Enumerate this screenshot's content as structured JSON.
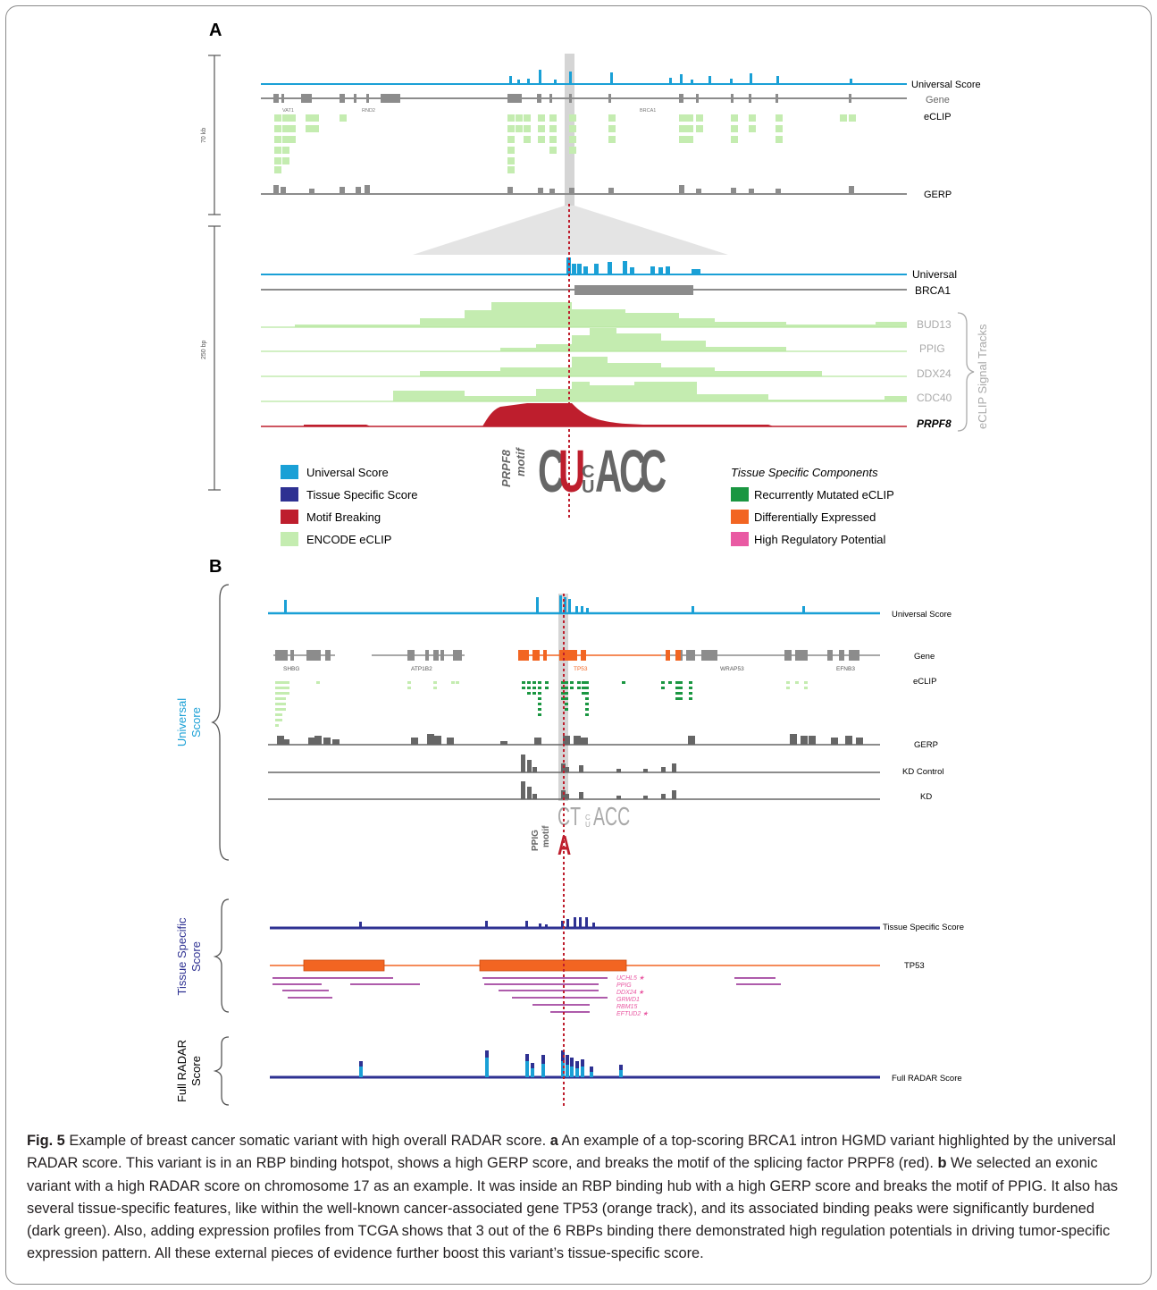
{
  "panelA": {
    "label": "A",
    "scale_top": "70 kb",
    "scale_bottom": "250 bp",
    "tracks_top": [
      "Universal Score",
      "Gene",
      "eCLIP",
      "GERP"
    ],
    "genes_top": [
      "VAT1",
      "RND2",
      "BRCA1"
    ],
    "tracks_zoom": [
      "Universal",
      "BRCA1"
    ],
    "signal_tracks": [
      "BUD13",
      "PPIG",
      "DDX24",
      "CDC40",
      "PRPF8"
    ],
    "signal_group_label": "eCLIP Signal Tracks",
    "motif_label_1": "PRPF8",
    "motif_label_2": "motif",
    "motif_letters": [
      "C",
      "U",
      "C",
      "U",
      "A",
      "C",
      "C"
    ],
    "legend_left": [
      {
        "label": "Universal Score",
        "color": "#1aa0d6"
      },
      {
        "label": "Tissue Specific Score",
        "color": "#2e3192"
      },
      {
        "label": "Motif Breaking",
        "color": "#be1e2d"
      },
      {
        "label": "ENCODE eCLIP",
        "color": "#c4ecb0"
      }
    ],
    "legend_right_title": "Tissue Specific Components",
    "legend_right": [
      {
        "label": "Recurrently Mutated eCLIP",
        "color": "#1a9641"
      },
      {
        "label": "Differentially Expressed",
        "color": "#f26522"
      },
      {
        "label": "High Regulatory Potential",
        "color": "#e95aa3"
      }
    ]
  },
  "panelB": {
    "label": "B",
    "group_universal": [
      "Universal",
      "Score"
    ],
    "group_tissue": [
      "Tissue Specific",
      "Score"
    ],
    "group_full": [
      "Full RADAR",
      "Score"
    ],
    "tracks": [
      "Universal Score",
      "Gene",
      "eCLIP",
      "GERP",
      "KD Control",
      "KD"
    ],
    "genes": [
      "SHBG",
      "ATP1B2",
      "TP53",
      "WRAP53",
      "EFNB3"
    ],
    "motif_label_1": "PPIG",
    "motif_label_2": "motif",
    "motif_text": "CT",
    "motif_text_2": "ACC",
    "motif_alt": "A",
    "tissue_tracks": [
      "Tissue Specific Score",
      "TP53"
    ],
    "rbps": [
      "UCHL5 ★",
      "PPIG",
      "DDX24 ★",
      "GRWD1",
      "RBM15",
      "EFTUD2 ★"
    ],
    "full_track": "Full RADAR Score"
  },
  "caption": {
    "fig_label": "Fig. 5",
    "title": " Example of breast cancer somatic variant with high overall RADAR score. ",
    "a_label": "a",
    "a_text": " An example of a top-scoring BRCA1 intron HGMD variant highlighted by the universal RADAR score. This variant is in an RBP binding hotspot, shows a high GERP score, and breaks the motif of the splicing factor PRPF8 (red). ",
    "b_label": "b",
    "b_text": " We selected an exonic variant with a high RADAR score on chromosome 17 as an example. It was inside an RBP binding hub with a high GERP score and breaks the motif of PPIG. It also has several tissue-specific features, like within the well-known cancer-associated gene TP53 (orange track), and its associated binding peaks were significantly burdened (dark green). Also, adding expression profiles from TCGA shows that 3 out of the 6 RBPs binding there demonstrated high regulation potentials in driving tumor-specific expression pattern. All these external pieces of evidence further boost this variant’s tissue-specific score."
  }
}
